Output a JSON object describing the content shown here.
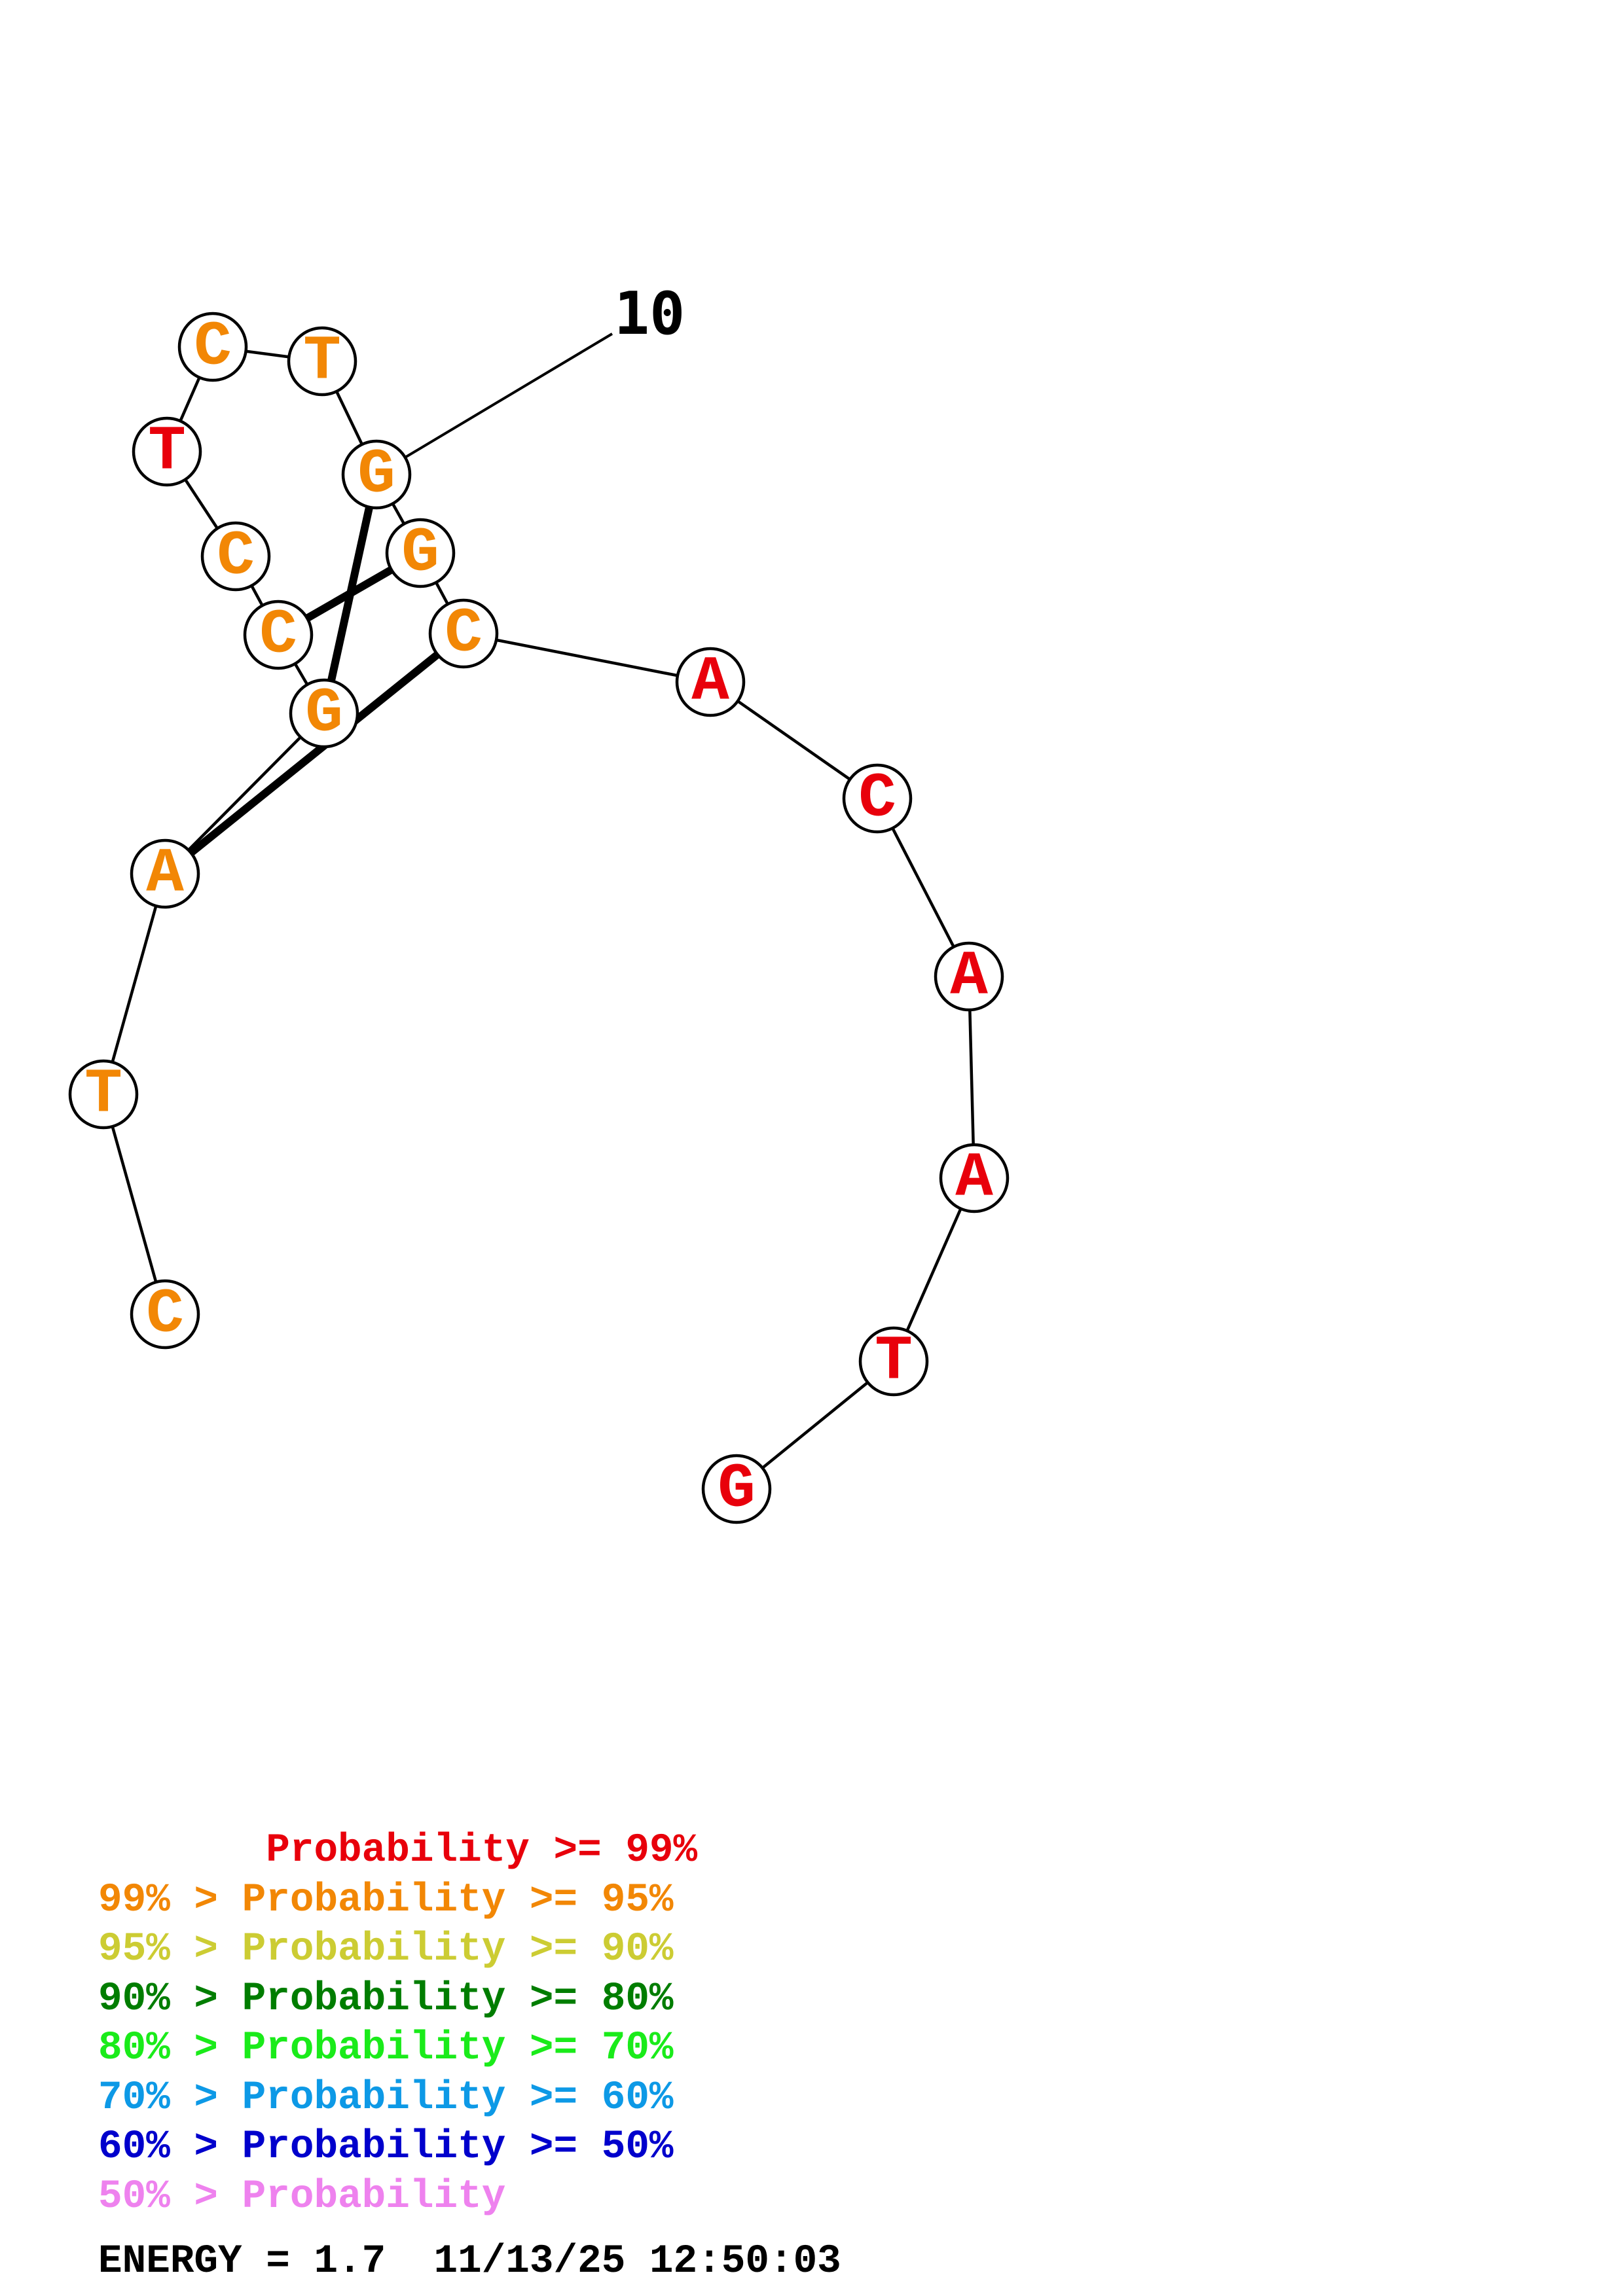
{
  "colors": {
    "red": "#e8000b",
    "orange": "#f28705",
    "yellow": "#cccc33",
    "dark_green": "#007d00",
    "green": "#1aeb1a",
    "cyan": "#0d99e6",
    "blue": "#0000cc",
    "pink": "#ee82ee"
  },
  "nucleotides": [
    {
      "base": "C",
      "color": "orange"
    },
    {
      "base": "T",
      "color": "orange"
    },
    {
      "base": "A",
      "color": "orange"
    },
    {
      "base": "G",
      "color": "orange"
    },
    {
      "base": "C",
      "color": "orange"
    },
    {
      "base": "C",
      "color": "orange"
    },
    {
      "base": "T",
      "color": "red"
    },
    {
      "base": "C",
      "color": "orange"
    },
    {
      "base": "T",
      "color": "orange"
    },
    {
      "base": "G",
      "color": "orange"
    },
    {
      "base": "G",
      "color": "orange"
    },
    {
      "base": "C",
      "color": "orange"
    },
    {
      "base": "A",
      "color": "red"
    },
    {
      "base": "C",
      "color": "red"
    },
    {
      "base": "A",
      "color": "red"
    },
    {
      "base": "A",
      "color": "red"
    },
    {
      "base": "T",
      "color": "red"
    },
    {
      "base": "G",
      "color": "red"
    }
  ],
  "base_pairs": [
    [
      4,
      10
    ],
    [
      5,
      11
    ],
    [
      3,
      12
    ]
  ],
  "index_marker": {
    "label": "10",
    "nucleotide": 10
  },
  "legend": [
    {
      "prefix": "       ",
      "text": "Probability >= 99%",
      "color": "red"
    },
    {
      "prefix": "",
      "text": "99% > Probability >= 95%",
      "color": "orange"
    },
    {
      "prefix": "",
      "text": "95% > Probability >= 90%",
      "color": "yellow"
    },
    {
      "prefix": "",
      "text": "90% > Probability >= 80%",
      "color": "dark_green"
    },
    {
      "prefix": "",
      "text": "80% > Probability >= 70%",
      "color": "green"
    },
    {
      "prefix": "",
      "text": "70% > Probability >= 60%",
      "color": "cyan"
    },
    {
      "prefix": "",
      "text": "60% > Probability >= 50%",
      "color": "blue"
    },
    {
      "prefix": "",
      "text": "50% > Probability",
      "color": "pink"
    }
  ],
  "footer": {
    "energy_text": "ENERGY = 1.7  11/13/25 12:50:03"
  }
}
